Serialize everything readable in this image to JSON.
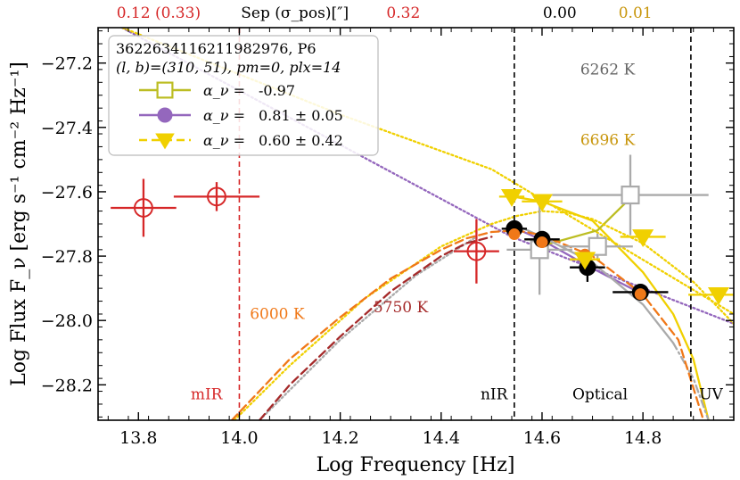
{
  "chart_data": {
    "type": "scatter",
    "xlabel": "Log Frequency [Hz]",
    "ylabel": "Log Flux F_ν [erg s⁻¹ cm⁻² Hz⁻¹]",
    "xlim": [
      13.72,
      14.98
    ],
    "ylim": [
      -28.31,
      -27.09
    ],
    "x_ticks": [
      13.8,
      14.0,
      14.2,
      14.4,
      14.6,
      14.8
    ],
    "x_tick_labels": [
      "13.8",
      "14.0",
      "14.2",
      "14.4",
      "14.6",
      "14.8"
    ],
    "y_ticks": [
      -28.2,
      -28.0,
      -27.8,
      -27.6,
      -27.4,
      -27.2
    ],
    "y_tick_labels": [
      "−28.2",
      "−28.0",
      "−27.8",
      "−27.6",
      "−27.4",
      "−27.2"
    ],
    "top_annotations": [
      {
        "text": "0.12 (0.33)",
        "x": 13.84,
        "color": "#d62728"
      },
      {
        "text": "Sep (σ_pos)[″]",
        "x": 14.11,
        "color": "#000000"
      },
      {
        "text": "0.32",
        "x": 14.325,
        "color": "#d62728"
      },
      {
        "text": "0.00",
        "x": 14.635,
        "color": "#000000"
      },
      {
        "text": "0.01",
        "x": 14.785,
        "color": "#c8960c"
      }
    ],
    "region_boundaries": [
      {
        "x": 14.0,
        "style": "dashed",
        "color": "#d62728",
        "label": "mIR",
        "label_x": 13.935,
        "label_y": -28.245
      },
      {
        "x": 14.545,
        "style": "dashed",
        "color": "#000000",
        "label": "nIR",
        "label_x": 14.505,
        "label_y": -28.245
      },
      {
        "x": 14.895,
        "style": "dashed",
        "color": "#000000",
        "label": "UV",
        "label_x": 14.935,
        "label_y": -28.245
      }
    ],
    "region_labels": [
      {
        "text": "Optical",
        "x": 14.715,
        "y": -28.245,
        "color": "#000000"
      }
    ],
    "temperature_labels": [
      {
        "text": "6262 K",
        "x": 14.73,
        "y": -27.235,
        "color": "#666666"
      },
      {
        "text": "6696 K",
        "x": 14.73,
        "y": -27.455,
        "color": "#c8960c"
      },
      {
        "text": "6000 K",
        "x": 14.075,
        "y": -27.995,
        "color": "#f07818"
      },
      {
        "text": "5750 K",
        "x": 14.32,
        "y": -27.975,
        "color": "#a52a2a"
      }
    ],
    "legend": {
      "location": "upper left",
      "title": "3622634116211982976, P6",
      "subtitle": "(l, b)=(310, 51), pm=0, plx=14",
      "entries": [
        {
          "label_prefix": "α_ν = ",
          "label_value": "-0.97",
          "color": "#bcbd22",
          "marker": "open-square"
        },
        {
          "label_prefix": "α_ν = ",
          "label_value": "0.81 ± 0.05",
          "color": "#9467bd",
          "marker": "filled-circle"
        },
        {
          "label_prefix": "α_ν = ",
          "label_value": "0.60 ± 0.42",
          "color": "#f0d000",
          "marker": "down-triangle"
        }
      ]
    },
    "series": [
      {
        "name": "Red open circles (mIR / nIR)",
        "color": "#d62728",
        "marker": "open-circle",
        "points": [
          {
            "x": 13.81,
            "y": -27.65,
            "xerr": 0.065,
            "yerr": 0.09
          },
          {
            "x": 13.955,
            "y": -27.615,
            "xerr": 0.085,
            "yerr": 0.045
          },
          {
            "x": 14.47,
            "y": -27.785,
            "xerr": 0.045,
            "yerr": 0.1
          }
        ]
      },
      {
        "name": "Gray open squares",
        "color": "#aaaaaa",
        "marker": "open-square",
        "points": [
          {
            "x": 14.595,
            "y": -27.78,
            "xerr": 0.065,
            "yerr": 0.14
          },
          {
            "x": 14.71,
            "y": -27.77,
            "xerr": 0.07,
            "yerr": 0.04
          },
          {
            "x": 14.775,
            "y": -27.61,
            "xerr": 0.155,
            "yerr": 0.125
          }
        ]
      },
      {
        "name": "Black filled circles",
        "color": "#000000",
        "marker": "filled-circle",
        "points": [
          {
            "x": 14.545,
            "y": -27.715,
            "xerr": 0.025,
            "yerr": 0.025
          },
          {
            "x": 14.6,
            "y": -27.748,
            "xerr": 0.035,
            "yerr": 0.02
          },
          {
            "x": 14.69,
            "y": -27.835,
            "xerr": 0.035,
            "yerr": 0.045
          },
          {
            "x": 14.795,
            "y": -27.912,
            "xerr": 0.055,
            "yerr": 0.01
          }
        ]
      },
      {
        "name": "Orange filled circles",
        "color": "#f07818",
        "marker": "filled-circle",
        "points": [
          {
            "x": 14.545,
            "y": -27.732
          },
          {
            "x": 14.6,
            "y": -27.757
          },
          {
            "x": 14.685,
            "y": -27.795
          },
          {
            "x": 14.795,
            "y": -27.918
          }
        ]
      },
      {
        "name": "Yellow down triangles",
        "color": "#f0d000",
        "marker": "down-triangle",
        "points": [
          {
            "x": 14.54,
            "y": -27.615,
            "xerr": 0.025,
            "yerr": 0.02
          },
          {
            "x": 14.6,
            "y": -27.63,
            "xerr": 0.04,
            "yerr": 0.015
          },
          {
            "x": 14.685,
            "y": -27.81,
            "xerr": 0.03,
            "yerr": 0.015
          },
          {
            "x": 14.8,
            "y": -27.74,
            "xerr": 0.045,
            "yerr": 0.01
          },
          {
            "x": 14.95,
            "y": -27.92,
            "xerr": 0.06,
            "yerr": 0.01
          }
        ]
      }
    ],
    "curves": [
      {
        "name": "purple power-law fit",
        "color": "#9467bd",
        "style": "dotted",
        "x": [
          13.72,
          14.54,
          14.98
        ],
        "y": [
          -27.05,
          -27.74,
          -28.01
        ]
      },
      {
        "name": "purple fit segment",
        "color": "#9467bd",
        "style": "solid",
        "x": [
          14.545,
          14.6,
          14.69,
          14.795
        ],
        "y": [
          -27.712,
          -27.75,
          -27.83,
          -27.915
        ]
      },
      {
        "name": "yellow power-law extension",
        "color": "#f0d000",
        "style": "dotted",
        "x": [
          13.72,
          14.2,
          14.5,
          14.98
        ],
        "y": [
          -27.06,
          -27.36,
          -27.53,
          -27.98
        ]
      },
      {
        "name": "yellow fit segment",
        "color": "#f0d000",
        "style": "solid",
        "x": [
          14.54,
          14.6,
          14.7,
          14.8,
          14.86,
          14.9,
          14.93
        ],
        "y": [
          -27.615,
          -27.63,
          -27.69,
          -27.85,
          -27.98,
          -28.12,
          -28.31
        ]
      },
      {
        "name": "olive fit segment",
        "color": "#bcbd22",
        "style": "solid",
        "x": [
          14.595,
          14.71,
          14.775
        ],
        "y": [
          -27.77,
          -27.72,
          -27.62
        ]
      },
      {
        "name": "gray blackbody 6262 K",
        "color": "#aaaaaa",
        "style": "solid",
        "x": [
          14.55,
          14.6,
          14.7,
          14.8,
          14.86
        ],
        "y": [
          -27.705,
          -27.74,
          -27.82,
          -27.95,
          -28.07
        ]
      },
      {
        "name": "gray blackbody 6262 K tail",
        "color": "#aaaaaa",
        "style": "dashdot",
        "x": [
          14.86,
          14.9,
          14.93
        ],
        "y": [
          -28.07,
          -28.18,
          -28.31
        ]
      },
      {
        "name": "gray dotted extension",
        "color": "#aaaaaa",
        "style": "dotted",
        "x": [
          14.04,
          14.2,
          14.35,
          14.47
        ],
        "y": [
          -28.31,
          -28.06,
          -27.86,
          -27.74
        ]
      },
      {
        "name": "yellow blackbody 6696 K",
        "color": "#f0d000",
        "style": "dotted",
        "x": [
          13.99,
          14.1,
          14.25,
          14.4,
          14.5,
          14.55,
          14.6,
          14.65,
          14.7,
          14.8,
          14.9,
          14.98
        ],
        "y": [
          -28.31,
          -28.14,
          -27.93,
          -27.77,
          -27.7,
          -27.675,
          -27.66,
          -27.665,
          -27.685,
          -27.76,
          -27.88,
          -28.01
        ]
      },
      {
        "name": "orange blackbody 6000 K",
        "color": "#f07818",
        "style": "dashed",
        "x": [
          13.985,
          14.1,
          14.2,
          14.3,
          14.4,
          14.45,
          14.5,
          14.55,
          14.6,
          14.7,
          14.8,
          14.87,
          14.92
        ],
        "y": [
          -28.31,
          -28.12,
          -27.99,
          -27.87,
          -27.78,
          -27.745,
          -27.725,
          -27.72,
          -27.735,
          -27.8,
          -27.92,
          -28.06,
          -28.31
        ]
      },
      {
        "name": "brown blackbody 5750 K",
        "color": "#a52a2a",
        "style": "dashed",
        "x": [
          14.04,
          14.1,
          14.2,
          14.3,
          14.4,
          14.45,
          14.5
        ],
        "y": [
          -28.31,
          -28.2,
          -28.05,
          -27.91,
          -27.8,
          -27.76,
          -27.74
        ]
      }
    ]
  }
}
